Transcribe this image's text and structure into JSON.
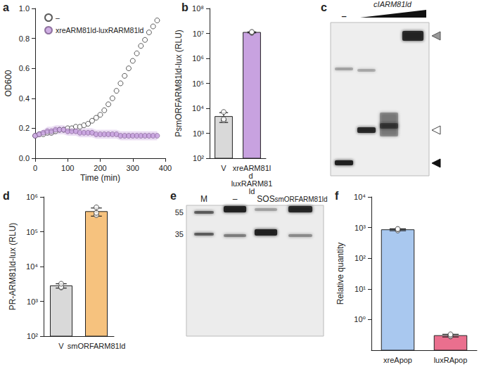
{
  "chart_data": [
    {
      "panel": "a",
      "type": "scatter",
      "x_label": "Time (min)",
      "y_label": "OD600",
      "xlim": [
        0,
        400
      ],
      "xticks": [
        0,
        100,
        200,
        300,
        400
      ],
      "ylim": [
        0,
        1.0
      ],
      "yticks": [
        {
          "value": 0,
          "label": "0.0"
        },
        {
          "value": 0.2,
          "label": "0.2"
        },
        {
          "value": 0.4,
          "label": "0.4"
        },
        {
          "value": 0.6,
          "label": "0.6"
        },
        {
          "value": 0.8,
          "label": "0.8"
        },
        {
          "value": 1.0,
          "label": "1.0"
        }
      ],
      "legend": "top-left",
      "x": [
        0,
        12.5,
        25,
        37.5,
        50,
        62.5,
        75,
        87.5,
        100,
        112.5,
        125,
        137.5,
        150,
        162.5,
        175,
        187.5,
        200,
        212.5,
        225,
        237.5,
        250,
        262.5,
        275,
        287.5,
        300,
        312.5,
        325,
        337.5,
        350,
        362.5,
        375
      ],
      "series": [
        {
          "name": "–",
          "color": "#333333",
          "marker": "open_circle",
          "values": [
            0.15,
            0.16,
            0.16,
            0.17,
            0.17,
            0.18,
            0.19,
            0.19,
            0.2,
            0.2,
            0.21,
            0.21,
            0.22,
            0.23,
            0.25,
            0.27,
            0.29,
            0.32,
            0.36,
            0.4,
            0.45,
            0.5,
            0.55,
            0.6,
            0.65,
            0.7,
            0.75,
            0.79,
            0.84,
            0.88,
            0.92
          ]
        },
        {
          "name": "xreARM81ld-luxRARM81ld",
          "color": "#c39bdc",
          "marker": "circle",
          "values": [
            0.15,
            0.16,
            0.17,
            0.18,
            0.18,
            0.19,
            0.19,
            0.19,
            0.18,
            0.18,
            0.18,
            0.17,
            0.17,
            0.17,
            0.17,
            0.16,
            0.16,
            0.16,
            0.16,
            0.16,
            0.16,
            0.15,
            0.15,
            0.15,
            0.15,
            0.15,
            0.15,
            0.15,
            0.15,
            0.15,
            0.15
          ],
          "error": [
            0.02,
            0.02,
            0.02,
            0.03,
            0.03,
            0.03,
            0.03,
            0.03,
            0.03,
            0.03,
            0.03,
            0.03,
            0.03,
            0.03,
            0.03,
            0.03,
            0.03,
            0.03,
            0.03,
            0.03,
            0.03,
            0.03,
            0.03,
            0.03,
            0.03,
            0.03,
            0.03,
            0.03,
            0.03,
            0.03,
            0.03
          ]
        }
      ]
    },
    {
      "panel": "b",
      "type": "bar",
      "y_label": "PsmORFARM81ld-lux (RLU)",
      "categories": [
        "V",
        "xreARM81ld luxRARM81ld"
      ],
      "values": [
        4700,
        11000000
      ],
      "errors": [
        2000,
        500000
      ],
      "points": [
        [
          3300,
          3700,
          7100
        ],
        [
          10500000,
          11000000,
          11500000
        ]
      ],
      "colors": [
        "#d9d9d9",
        "#c8a2e0"
      ],
      "log": "y",
      "ylim": [
        100,
        100000000
      ],
      "yticks": [
        {
          "value": 100,
          "label": "10²"
        },
        {
          "value": 1000,
          "label": "10³"
        },
        {
          "value": 10000,
          "label": "10⁴"
        },
        {
          "value": 100000,
          "label": "10⁵"
        },
        {
          "value": 1000000,
          "label": "10⁶"
        },
        {
          "value": 10000000,
          "label": "10⁷"
        },
        {
          "value": 100000000,
          "label": "10⁸"
        }
      ]
    },
    {
      "panel": "c",
      "type": "gel",
      "title": "cIARM81ld",
      "lane_labels": [
        "–"
      ]
    },
    {
      "panel": "d",
      "type": "bar",
      "y_label": "PR-ARM81ld-lux (RLU)",
      "categories": [
        "V",
        "smORFARM81ld"
      ],
      "values": [
        2800,
        380000
      ],
      "errors": [
        400,
        100000
      ],
      "points": [
        [
          2500,
          2600,
          3200
        ],
        [
          300000,
          350000,
          500000
        ]
      ],
      "colors": [
        "#d9d9d9",
        "#f6c27e"
      ],
      "log": "y",
      "ylim": [
        100,
        1000000
      ],
      "yticks": [
        {
          "value": 100,
          "label": "10²"
        },
        {
          "value": 1000,
          "label": "10³"
        },
        {
          "value": 10000,
          "label": "10⁴"
        },
        {
          "value": 100000,
          "label": "10⁵"
        },
        {
          "value": 1000000,
          "label": "10⁶"
        }
      ]
    },
    {
      "panel": "e",
      "type": "gel",
      "lane_labels": [
        "M",
        "–",
        "SOS",
        "smORFARM81ld"
      ],
      "markers": [
        55,
        35
      ]
    },
    {
      "panel": "f",
      "type": "bar",
      "y_label": "Relative quantity",
      "categories": [
        "xreApop",
        "luxRApop"
      ],
      "values": [
        850,
        0.3
      ],
      "errors": [
        60,
        0.03
      ],
      "points": [
        [
          800,
          880,
          900
        ],
        [
          0.28,
          0.3,
          0.33
        ]
      ],
      "colors": [
        "#a9c8ef",
        "#ea6f8e"
      ],
      "log": "y",
      "ylim": [
        0.1,
        10000
      ],
      "yticks": [
        {
          "value": 1,
          "label": "10⁰"
        },
        {
          "value": 10,
          "label": "10¹"
        },
        {
          "value": 100,
          "label": "10²"
        },
        {
          "value": 1000,
          "label": "10³"
        },
        {
          "value": 10000,
          "label": "10⁴"
        }
      ]
    }
  ]
}
